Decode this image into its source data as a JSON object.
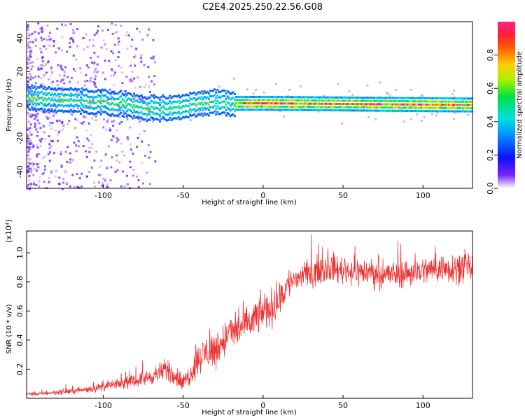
{
  "title": "C2E4.2025.250.22.56.G08",
  "colors": {
    "snr_line": "#ee3333",
    "spectrogram_scale": [
      "#d8c8f8",
      "#9a55e6",
      "#6a00ff",
      "#1a10ff",
      "#0090ff",
      "#00e0e0",
      "#00e040",
      "#a8f000",
      "#ffd000",
      "#ff7000",
      "#ff2040",
      "#ff2288"
    ]
  },
  "chart_data": [
    {
      "type": "heatmap",
      "title": "C2E4.2025.250.22.56.G08",
      "xlabel": "Height of straight line (km)",
      "ylabel": "Frequency (Hz)",
      "xlim": [
        -148,
        131
      ],
      "ylim": [
        -50,
        50
      ],
      "x_ticks": [
        -100,
        -50,
        0,
        50,
        100
      ],
      "y_ticks": [
        -40,
        -20,
        0,
        20,
        40
      ],
      "colorbar": {
        "label": "Normalized spectral amplitude",
        "range": [
          0,
          1
        ],
        "ticks": [
          "0.0",
          "0.2",
          "0.4",
          "0.6",
          "0.8"
        ]
      },
      "signal_band_center_hz": [
        [
          -148,
          4
        ],
        [
          -130,
          3
        ],
        [
          -110,
          2
        ],
        [
          -90,
          1
        ],
        [
          -75,
          -2
        ],
        [
          -60,
          -2
        ],
        [
          -45,
          0
        ],
        [
          -30,
          2
        ],
        [
          -20,
          1
        ],
        [
          -10,
          1
        ],
        [
          0,
          1
        ],
        [
          130,
          0
        ]
      ]
    },
    {
      "type": "line",
      "xlabel": "Height of straight line (km)",
      "ylabel": "SNR (10 * v/v)",
      "y_multiplier": "(x10⁴)",
      "xlim": [
        -148,
        131
      ],
      "ylim": [
        0,
        1.15
      ],
      "x_ticks": [
        -100,
        -50,
        0,
        50,
        100
      ],
      "y_ticks": [
        "0.2",
        "0.4",
        "0.6",
        "0.8",
        "1.0"
      ],
      "series": [
        {
          "x": [
            -148,
            -140,
            -130,
            -120,
            -110,
            -100,
            -90,
            -80,
            -70,
            -65,
            -60,
            -55,
            -50,
            -45,
            -40,
            -35,
            -30,
            -25,
            -20,
            -15,
            -10,
            -5,
            0,
            5,
            10,
            15,
            20,
            25,
            30,
            40,
            50,
            60,
            70,
            80,
            90,
            100,
            110,
            120,
            131
          ],
          "values": [
            0.03,
            0.03,
            0.04,
            0.05,
            0.06,
            0.08,
            0.1,
            0.12,
            0.15,
            0.17,
            0.2,
            0.16,
            0.1,
            0.18,
            0.28,
            0.32,
            0.33,
            0.4,
            0.45,
            0.48,
            0.5,
            0.55,
            0.6,
            0.62,
            0.66,
            0.78,
            0.82,
            0.84,
            0.86,
            0.9,
            0.88,
            0.87,
            0.86,
            0.85,
            0.86,
            0.88,
            0.89,
            0.9,
            0.9
          ],
          "spread": [
            0.01,
            0.01,
            0.015,
            0.02,
            0.02,
            0.03,
            0.03,
            0.04,
            0.05,
            0.06,
            0.08,
            0.07,
            0.06,
            0.08,
            0.1,
            0.12,
            0.12,
            0.12,
            0.12,
            0.12,
            0.12,
            0.12,
            0.12,
            0.12,
            0.12,
            0.1,
            0.09,
            0.09,
            0.09,
            0.09,
            0.09,
            0.09,
            0.09,
            0.09,
            0.09,
            0.09,
            0.09,
            0.1,
            0.1
          ]
        }
      ]
    }
  ]
}
